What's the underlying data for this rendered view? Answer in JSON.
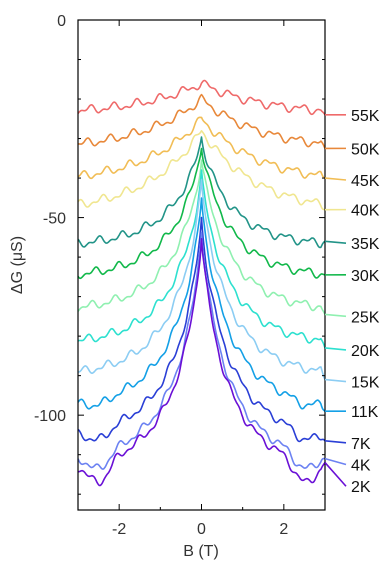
{
  "chart_data": {
    "type": "line",
    "xlabel": "B (T)",
    "ylabel": "ΔG (μS)",
    "xlim": [
      -3,
      3
    ],
    "ylim": [
      -124,
      0
    ],
    "x_ticks": [
      -2,
      0,
      2
    ],
    "x_tick_labels": [
      "-2",
      "0",
      "2"
    ],
    "y_ticks": [
      0,
      -50,
      -100
    ],
    "y_tick_labels": [
      "0",
      "-50",
      "-100"
    ],
    "grid": false,
    "legend": "labels at right end of each curve",
    "series": [
      {
        "name": "55K",
        "color": "#ef6a6a",
        "base": -24.0,
        "peak": -16.0,
        "label_y": -25.0,
        "y_end": -24.0
      },
      {
        "name": "50K",
        "color": "#e8883a",
        "base": -33.0,
        "peak": -20.0,
        "label_y": -33.5,
        "y_end": -32.5
      },
      {
        "name": "45K",
        "color": "#f1bd55",
        "base": -41.5,
        "peak": -25.0,
        "label_y": -41.5,
        "y_end": -40.0
      },
      {
        "name": "40K",
        "color": "#f0e690",
        "base": -49.0,
        "peak": -28.0,
        "label_y": -49.0,
        "y_end": -48.0
      },
      {
        "name": "35K",
        "color": "#229488",
        "base": -57.5,
        "peak": -29.5,
        "label_y": -57.5,
        "y_end": -56.0
      },
      {
        "name": "30K",
        "color": "#11b84a",
        "base": -65.5,
        "peak": -31.5,
        "label_y": -65.5,
        "y_end": -64.5
      },
      {
        "name": "25K",
        "color": "#8ff0b0",
        "base": -74.0,
        "peak": -35.0,
        "label_y": -76.0,
        "y_end": -74.5
      },
      {
        "name": "20K",
        "color": "#2de0cf",
        "base": -82.5,
        "peak": -39.0,
        "label_y": -84.5,
        "y_end": -83.0
      },
      {
        "name": "15K",
        "color": "#8ccdf3",
        "base": -90.5,
        "peak": -41.0,
        "label_y": -92.5,
        "y_end": -91.0
      },
      {
        "name": "11K",
        "color": "#14a0e6",
        "base": -98.5,
        "peak": -45.0,
        "label_y": -100.0,
        "y_end": -99.0
      },
      {
        "name": "7K",
        "color": "#2a3fd6",
        "base": -106.0,
        "peak": -50.0,
        "label_y": -108.0,
        "y_end": -106.5
      },
      {
        "name": "4K",
        "color": "#6c82f2",
        "base": -112.0,
        "peak": -53.0,
        "label_y": -113.5,
        "y_end": -111.0
      },
      {
        "name": "2K",
        "color": "#6a10d6",
        "base": -114.0,
        "peak": -54.5,
        "label_y": -119.0,
        "y_end": -112.0
      }
    ]
  }
}
